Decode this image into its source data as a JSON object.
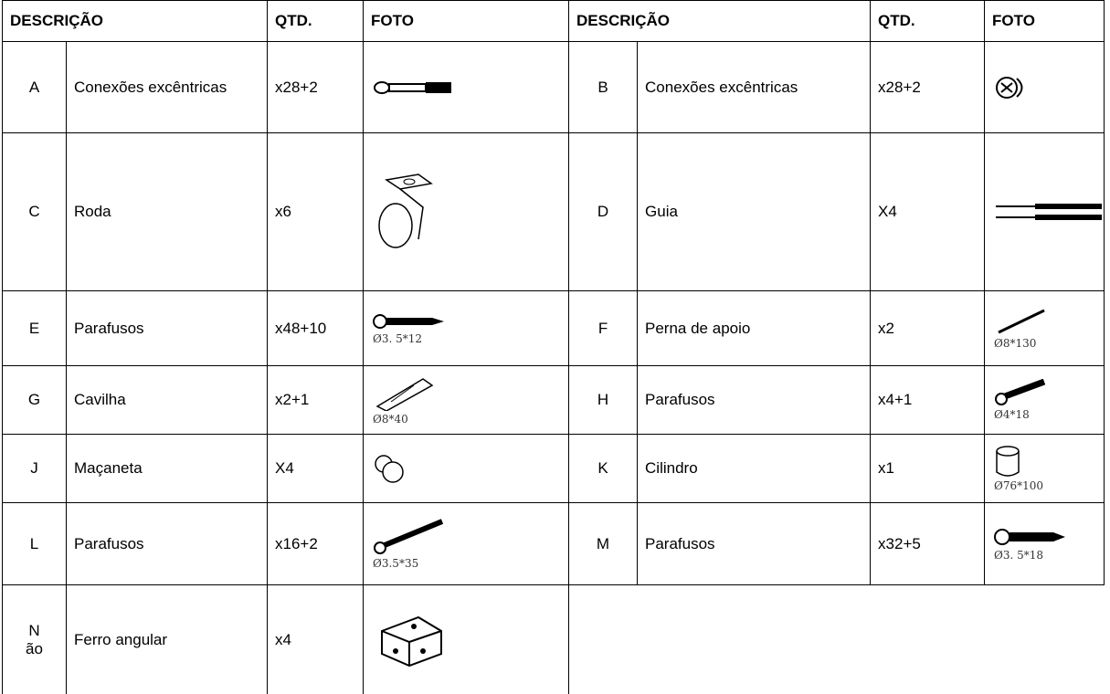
{
  "header": [
    "DESCRIÇÃO",
    "QTD.",
    "FOTO",
    "DESCRIÇÃO",
    "QTD.",
    "FOTO"
  ],
  "rows": [
    {
      "left": {
        "letter": "A",
        "description": "Conexões excêntricas",
        "quantity": "x28+2"
      },
      "right": {
        "letter": "B",
        "description": "Conexões excêntricas",
        "quantity": "x28+2"
      }
    },
    {
      "left": {
        "letter": "C",
        "description": "Roda",
        "quantity": "x6"
      },
      "right": {
        "letter": "D",
        "description": "Guia",
        "quantity": "X4"
      }
    },
    {
      "left": {
        "letter": "E",
        "description": "Parafusos",
        "quantity": "x48+10",
        "caption": "Ø3. 5*12"
      },
      "right": {
        "letter": "F",
        "description": "Perna de apoio",
        "quantity": "x2",
        "caption": "Ø8*130"
      }
    },
    {
      "left": {
        "letter": "G",
        "description": "Cavilha",
        "quantity": "x2+1",
        "caption": "Ø8*40"
      },
      "right": {
        "letter": "H",
        "description": "Parafusos",
        "quantity": "x4+1",
        "caption": "Ø4*18"
      }
    },
    {
      "left": {
        "letter": "J",
        "description": "Maçaneta",
        "quantity": "X4"
      },
      "right": {
        "letter": "K",
        "description": "Cilindro",
        "quantity": "x1",
        "caption": "Ø76*100"
      }
    },
    {
      "left": {
        "letter": "L",
        "description": "Parafusos",
        "quantity": "x16+2",
        "caption": "Ø3.5*35"
      },
      "right": {
        "letter": "M",
        "description": "Parafusos",
        "quantity": "x32+5",
        "caption": "Ø3. 5*18"
      }
    },
    {
      "left": {
        "letter": [
          "N",
          "ão"
        ],
        "description": "Ferro angular",
        "quantity": "x4"
      }
    }
  ]
}
